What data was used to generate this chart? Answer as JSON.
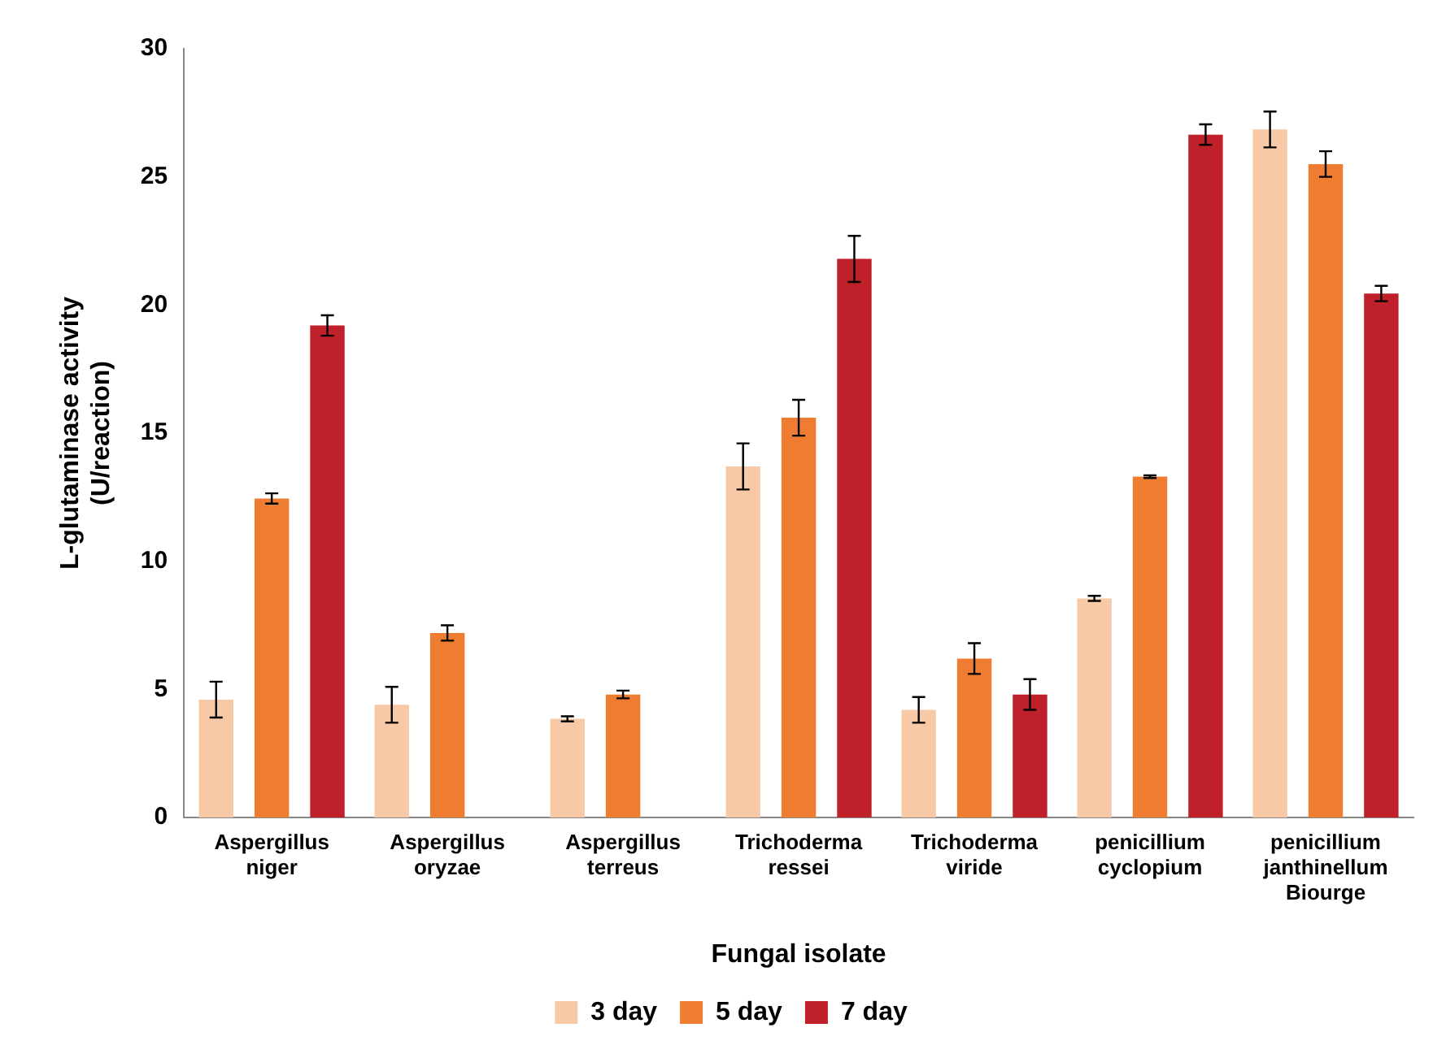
{
  "chart_data": {
    "type": "bar",
    "xlabel": "Fungal isolate",
    "ylabel": "L-glutaminase activity (U/reaction)",
    "categories": [
      "Aspergillus niger",
      "Aspergillus oryzae",
      "Aspergillus terreus",
      "Trichoderma ressei",
      "Trichoderma viride",
      "penicillium cyclopium",
      "penicillium janthinellum Biourge"
    ],
    "series": [
      {
        "name": "3 day",
        "color": "#f8c9a6",
        "values": [
          4.6,
          4.4,
          3.85,
          13.7,
          4.2,
          8.55,
          26.85
        ],
        "errors": [
          0.7,
          0.7,
          0.1,
          0.9,
          0.5,
          0.1,
          0.7
        ]
      },
      {
        "name": "5 day",
        "color": "#ee7d31",
        "values": [
          12.45,
          7.2,
          4.8,
          15.6,
          6.2,
          13.3,
          25.5
        ],
        "errors": [
          0.2,
          0.3,
          0.15,
          0.7,
          0.6,
          0.05,
          0.5
        ]
      },
      {
        "name": "7 day",
        "color": "#c0202a",
        "values": [
          19.2,
          null,
          null,
          21.8,
          4.8,
          26.65,
          20.45
        ],
        "errors": [
          0.4,
          null,
          null,
          0.9,
          0.6,
          0.4,
          0.3
        ]
      }
    ],
    "ylim": [
      0,
      30
    ],
    "yticks": [
      0,
      5,
      10,
      15,
      20,
      25,
      30
    ],
    "grid": false,
    "legend": "bottom"
  }
}
